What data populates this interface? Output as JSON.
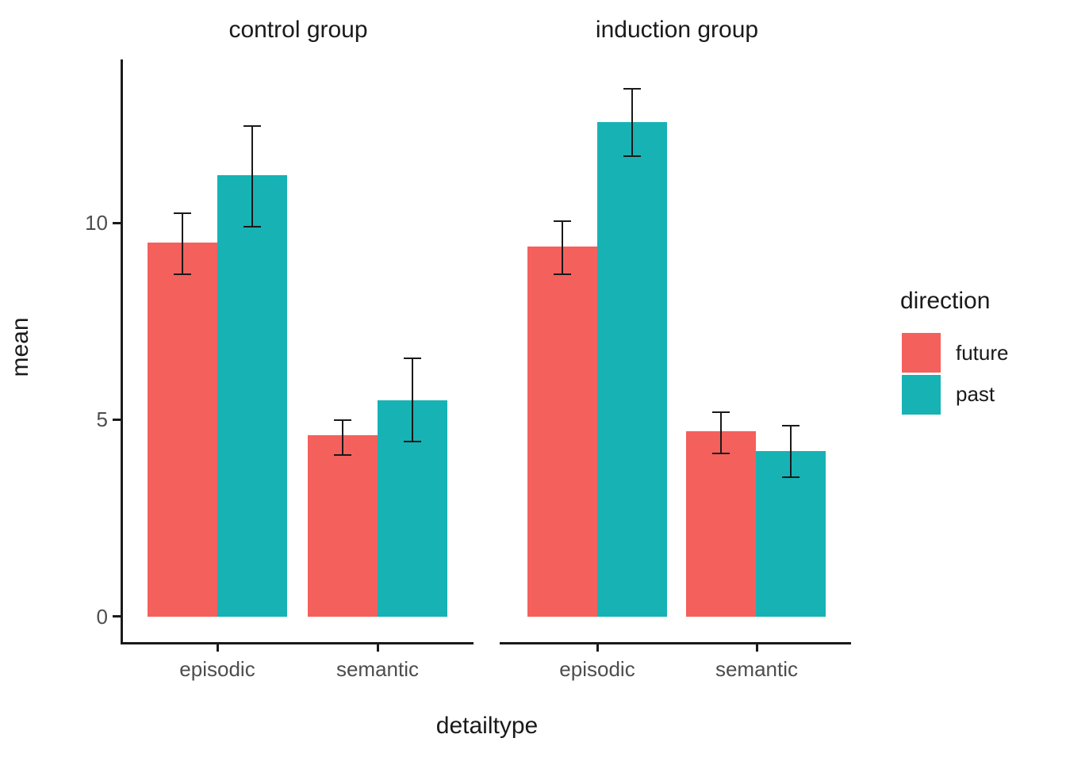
{
  "chart_data": {
    "type": "bar",
    "subtype": "grouped-faceted-with-errorbars",
    "xlabel": "detailtype",
    "ylabel": "mean",
    "y_ticks": [
      "0",
      "5",
      "10"
    ],
    "y_tick_values": [
      0,
      5,
      10
    ],
    "ylim": [
      0,
      14.2
    ],
    "grid": "off",
    "categories": [
      "episodic",
      "semantic"
    ],
    "legend": {
      "title": "direction",
      "position": "right",
      "entries": [
        {
          "label": "future",
          "color": "#F4605C"
        },
        {
          "label": "past",
          "color": "#17B2B4"
        }
      ]
    },
    "facets": [
      {
        "label": "control group",
        "series": [
          {
            "name": "future",
            "values": [
              9.5,
              4.6
            ],
            "ymin": [
              8.7,
              4.1
            ],
            "ymax": [
              10.25,
              5.0
            ]
          },
          {
            "name": "past",
            "values": [
              11.2,
              5.5
            ],
            "ymin": [
              9.9,
              4.45
            ],
            "ymax": [
              12.45,
              6.55
            ]
          }
        ]
      },
      {
        "label": "induction group",
        "series": [
          {
            "name": "future",
            "values": [
              9.4,
              4.7
            ],
            "ymin": [
              8.7,
              4.15
            ],
            "ymax": [
              10.05,
              5.2
            ]
          },
          {
            "name": "past",
            "values": [
              12.55,
              4.2
            ],
            "ymin": [
              11.7,
              3.55
            ],
            "ymax": [
              13.4,
              4.85
            ]
          }
        ]
      }
    ],
    "colors": {
      "axis": "#1a1a1a",
      "tick_label": "#4d4d4d",
      "errorbar": "#1a1a1a"
    }
  }
}
